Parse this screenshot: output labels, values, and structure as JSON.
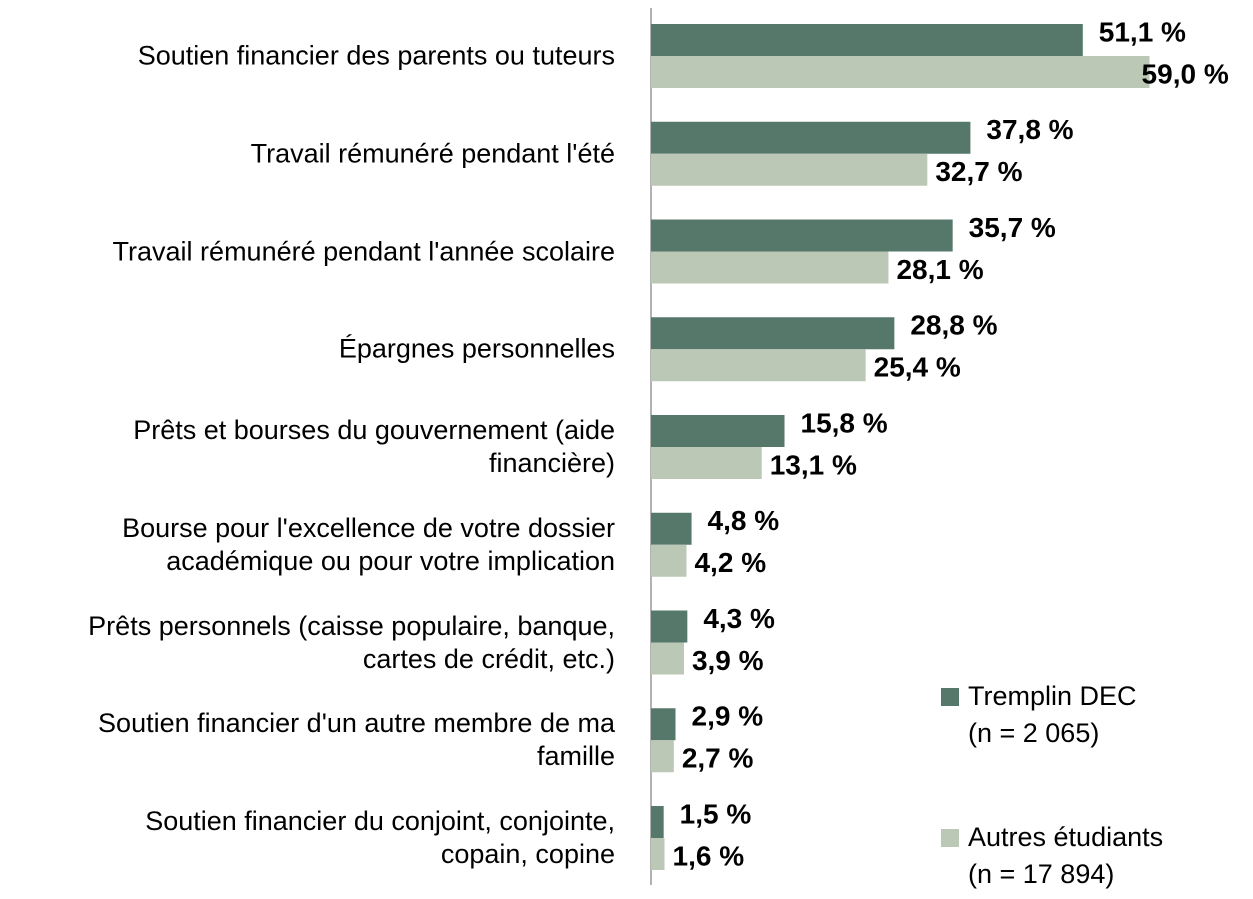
{
  "chart_data": {
    "type": "hbar",
    "categories": [
      "Soutien financier des parents ou tuteurs",
      "Travail rémunéré pendant l'été",
      "Travail rémunéré pendant l'année scolaire",
      "Épargnes personnelles",
      "Prêts et bourses du gouvernement (aide\nfinancière)",
      "Bourse pour l'excellence de votre dossier\nacadémique ou pour votre implication",
      "Prêts personnels (caisse populaire, banque,\ncartes de crédit, etc.)",
      "Soutien financier d'un autre membre de ma\nfamille",
      "Soutien financier du conjoint, conjointe,\ncopain, copine"
    ],
    "series": [
      {
        "name": "Tremplin DEC\n(n = 2 065)",
        "color": "#56786b",
        "values": [
          51.1,
          37.8,
          35.7,
          28.8,
          15.8,
          4.8,
          4.3,
          2.9,
          1.5
        ],
        "value_labels": [
          "51,1 %",
          "37,8 %",
          "35,7 %",
          "28,8 %",
          "15,8 %",
          "4,8 %",
          "4,3 %",
          "2,9 %",
          "1,5 %"
        ]
      },
      {
        "name": "Autres étudiants\n(n = 17 894)",
        "color": "#bcc8b6",
        "values": [
          59.0,
          32.7,
          28.1,
          25.4,
          13.1,
          4.2,
          3.9,
          2.7,
          1.6
        ],
        "value_labels": [
          "59,0 %",
          "32,7 %",
          "28,1 %",
          "25,4 %",
          "13,1 %",
          "4,2 %",
          "3,9 %",
          "2,7 %",
          "1,6 %"
        ]
      }
    ],
    "legend": "bottom-right"
  }
}
